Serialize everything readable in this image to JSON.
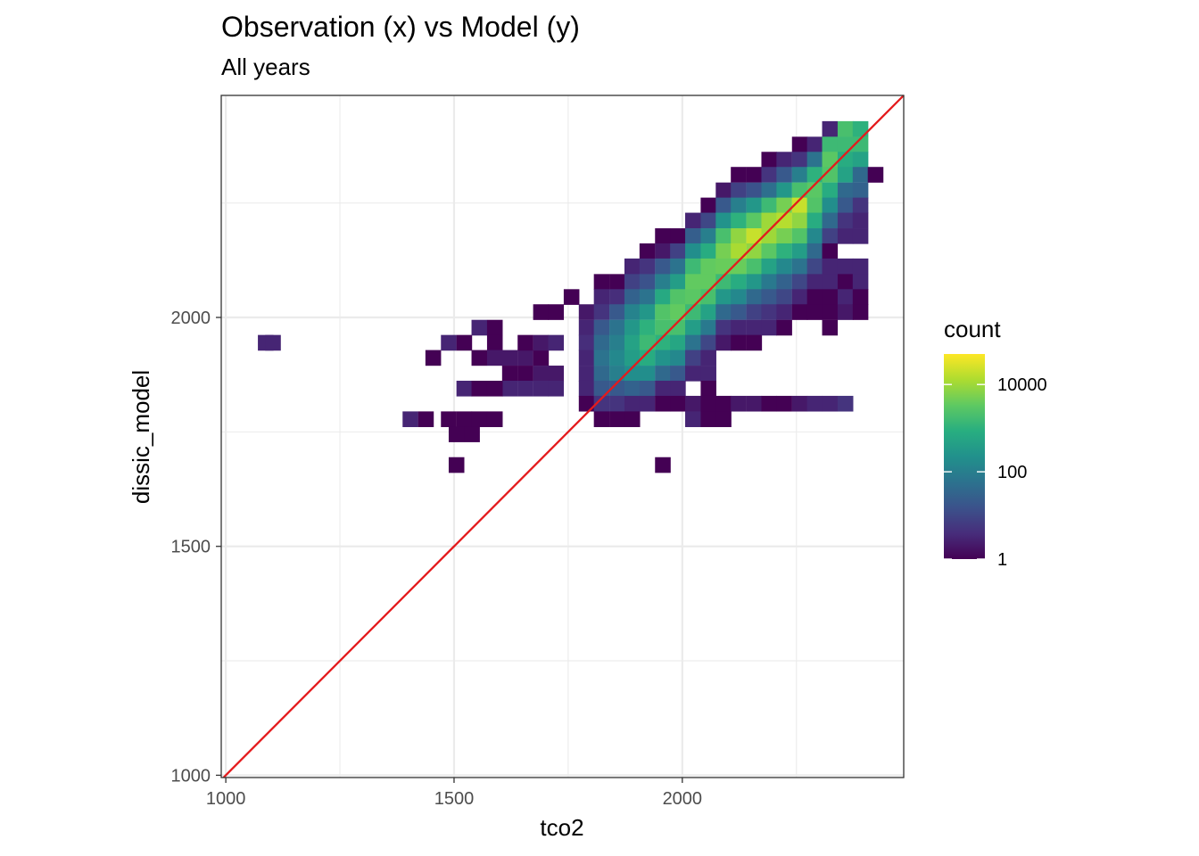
{
  "chart_data": {
    "type": "heatmap",
    "title": "Observation (x) vs Model (y)",
    "subtitle": "All years",
    "xlabel": "tco2",
    "ylabel": "dissic_model",
    "xlim": [
      990,
      2485
    ],
    "ylim": [
      995,
      2485
    ],
    "x_ticks": [
      1000,
      1500,
      2000
    ],
    "y_ticks": [
      1000,
      1500,
      2000
    ],
    "bin_width": 33.5,
    "grid": true,
    "reference_line": {
      "slope": 1,
      "intercept": 0,
      "color": "#e41a1c"
    },
    "legend": {
      "title": "count",
      "scale": "log10",
      "range": [
        1,
        50000
      ],
      "labels": [
        {
          "value": 1,
          "text": "1"
        },
        {
          "value": 100,
          "text": "100"
        },
        {
          "value": 10000,
          "text": "10000"
        }
      ],
      "position": "right"
    },
    "bins": [
      [
        1087,
        1945,
        3
      ],
      [
        1103,
        1945,
        3
      ],
      [
        1454,
        1912,
        1
      ],
      [
        1488,
        1945,
        3
      ],
      [
        1522,
        1945,
        1
      ],
      [
        1555,
        1978,
        3
      ],
      [
        1589,
        1978,
        1
      ],
      [
        1589,
        1945,
        1
      ],
      [
        1555,
        1912,
        1
      ],
      [
        1589,
        1912,
        2
      ],
      [
        1622,
        1912,
        2
      ],
      [
        1656,
        1912,
        2
      ],
      [
        1690,
        1912,
        1
      ],
      [
        1656,
        1945,
        1
      ],
      [
        1690,
        1945,
        2
      ],
      [
        1723,
        1945,
        3
      ],
      [
        1622,
        1878,
        1
      ],
      [
        1656,
        1878,
        1
      ],
      [
        1723,
        1878,
        2
      ],
      [
        1690,
        1878,
        2
      ],
      [
        1622,
        1845,
        3
      ],
      [
        1656,
        1845,
        3
      ],
      [
        1690,
        1845,
        3
      ],
      [
        1723,
        1845,
        3
      ],
      [
        1522,
        1845,
        3
      ],
      [
        1555,
        1845,
        1
      ],
      [
        1589,
        1845,
        1
      ],
      [
        1404,
        1778,
        3
      ],
      [
        1438,
        1778,
        1
      ],
      [
        1488,
        1778,
        1
      ],
      [
        1522,
        1778,
        1
      ],
      [
        1555,
        1778,
        1
      ],
      [
        1589,
        1778,
        1
      ],
      [
        1505,
        1745,
        1
      ],
      [
        1539,
        1745,
        1
      ],
      [
        1505,
        1678,
        1
      ],
      [
        1690,
        2012,
        1
      ],
      [
        1723,
        2012,
        1
      ],
      [
        1757,
        2045,
        1
      ],
      [
        1790,
        2012,
        2
      ],
      [
        1790,
        1978,
        3
      ],
      [
        1790,
        1945,
        4
      ],
      [
        1790,
        1912,
        3
      ],
      [
        1790,
        1878,
        3
      ],
      [
        1790,
        1845,
        3
      ],
      [
        1790,
        1812,
        1
      ],
      [
        1823,
        2078,
        1
      ],
      [
        1823,
        2045,
        3
      ],
      [
        1823,
        2012,
        5
      ],
      [
        1823,
        1978,
        20
      ],
      [
        1823,
        1945,
        40
      ],
      [
        1823,
        1912,
        60
      ],
      [
        1823,
        1878,
        40
      ],
      [
        1823,
        1845,
        20
      ],
      [
        1823,
        1812,
        5
      ],
      [
        1823,
        1778,
        1
      ],
      [
        1857,
        2078,
        1
      ],
      [
        1857,
        2045,
        4
      ],
      [
        1857,
        2012,
        20
      ],
      [
        1857,
        1978,
        60
      ],
      [
        1857,
        1945,
        100
      ],
      [
        1857,
        1912,
        150
      ],
      [
        1857,
        1878,
        100
      ],
      [
        1857,
        1845,
        20
      ],
      [
        1857,
        1812,
        5
      ],
      [
        1857,
        1778,
        1
      ],
      [
        1890,
        2112,
        3
      ],
      [
        1890,
        2078,
        8
      ],
      [
        1890,
        2045,
        30
      ],
      [
        1890,
        2012,
        120
      ],
      [
        1890,
        1978,
        300
      ],
      [
        1890,
        1945,
        500
      ],
      [
        1890,
        1912,
        400
      ],
      [
        1890,
        1878,
        200
      ],
      [
        1890,
        1845,
        30
      ],
      [
        1890,
        1812,
        3
      ],
      [
        1890,
        1778,
        1
      ],
      [
        1923,
        2145,
        1
      ],
      [
        1923,
        2112,
        5
      ],
      [
        1923,
        2078,
        15
      ],
      [
        1923,
        2045,
        60
      ],
      [
        1923,
        2012,
        300
      ],
      [
        1923,
        1978,
        1000
      ],
      [
        1923,
        1945,
        1500
      ],
      [
        1923,
        1912,
        800
      ],
      [
        1923,
        1878,
        200
      ],
      [
        1923,
        1845,
        20
      ],
      [
        1923,
        1812,
        3
      ],
      [
        1957,
        2178,
        1
      ],
      [
        1957,
        2145,
        2
      ],
      [
        1957,
        2112,
        20
      ],
      [
        1957,
        2078,
        100
      ],
      [
        1957,
        2045,
        700
      ],
      [
        1957,
        2012,
        2500
      ],
      [
        1957,
        1978,
        2000
      ],
      [
        1957,
        1945,
        1000
      ],
      [
        1957,
        1912,
        250
      ],
      [
        1957,
        1878,
        40
      ],
      [
        1957,
        1845,
        3
      ],
      [
        1957,
        1812,
        1
      ],
      [
        1957,
        1678,
        1
      ],
      [
        1990,
        2178,
        1
      ],
      [
        1990,
        2145,
        8
      ],
      [
        1990,
        2112,
        60
      ],
      [
        1990,
        2078,
        400
      ],
      [
        1990,
        2045,
        2500
      ],
      [
        1990,
        2012,
        3500
      ],
      [
        1990,
        1978,
        2000
      ],
      [
        1990,
        1945,
        600
      ],
      [
        1990,
        1912,
        150
      ],
      [
        1990,
        1878,
        20
      ],
      [
        1990,
        1845,
        3
      ],
      [
        1990,
        1812,
        1
      ],
      [
        2023,
        2212,
        3
      ],
      [
        2023,
        2178,
        25
      ],
      [
        2023,
        2145,
        200
      ],
      [
        2023,
        2112,
        1500
      ],
      [
        2023,
        2078,
        3500
      ],
      [
        2023,
        2045,
        3000
      ],
      [
        2023,
        2012,
        1500
      ],
      [
        2023,
        1978,
        400
      ],
      [
        2023,
        1945,
        60
      ],
      [
        2023,
        1912,
        8
      ],
      [
        2023,
        1878,
        3
      ],
      [
        2023,
        1812,
        2
      ],
      [
        2023,
        1778,
        3
      ],
      [
        2057,
        2245,
        1
      ],
      [
        2057,
        2212,
        10
      ],
      [
        2057,
        2178,
        100
      ],
      [
        2057,
        2145,
        800
      ],
      [
        2057,
        2112,
        3500
      ],
      [
        2057,
        2078,
        3500
      ],
      [
        2057,
        2045,
        2000
      ],
      [
        2057,
        2012,
        500
      ],
      [
        2057,
        1978,
        80
      ],
      [
        2057,
        1945,
        10
      ],
      [
        2057,
        1912,
        3
      ],
      [
        2057,
        1878,
        3
      ],
      [
        2057,
        1845,
        1
      ],
      [
        2057,
        1812,
        1
      ],
      [
        2057,
        1778,
        1
      ],
      [
        2090,
        2278,
        2
      ],
      [
        2090,
        2245,
        20
      ],
      [
        2090,
        2212,
        250
      ],
      [
        2090,
        2178,
        2000
      ],
      [
        2090,
        2145,
        5000
      ],
      [
        2090,
        2112,
        4000
      ],
      [
        2090,
        2078,
        1500
      ],
      [
        2090,
        2045,
        300
      ],
      [
        2090,
        2012,
        40
      ],
      [
        2090,
        1978,
        5
      ],
      [
        2090,
        1945,
        2
      ],
      [
        2090,
        1812,
        1
      ],
      [
        2090,
        1778,
        1
      ],
      [
        2123,
        2312,
        1
      ],
      [
        2123,
        2278,
        8
      ],
      [
        2123,
        2245,
        100
      ],
      [
        2123,
        2212,
        1000
      ],
      [
        2123,
        2178,
        8000
      ],
      [
        2123,
        2145,
        12000
      ],
      [
        2123,
        2112,
        4000
      ],
      [
        2123,
        2078,
        800
      ],
      [
        2123,
        2045,
        150
      ],
      [
        2123,
        2012,
        20
      ],
      [
        2123,
        1978,
        3
      ],
      [
        2123,
        1945,
        1
      ],
      [
        2123,
        1812,
        2
      ],
      [
        2157,
        2312,
        1
      ],
      [
        2157,
        2278,
        15
      ],
      [
        2157,
        2245,
        300
      ],
      [
        2157,
        2212,
        3000
      ],
      [
        2157,
        2178,
        20000
      ],
      [
        2157,
        2145,
        8000
      ],
      [
        2157,
        2112,
        2000
      ],
      [
        2157,
        2078,
        300
      ],
      [
        2157,
        2045,
        40
      ],
      [
        2157,
        2012,
        8
      ],
      [
        2157,
        1978,
        3
      ],
      [
        2157,
        1945,
        1
      ],
      [
        2157,
        1812,
        2
      ],
      [
        2190,
        2345,
        1
      ],
      [
        2190,
        2312,
        5
      ],
      [
        2190,
        2278,
        50
      ],
      [
        2190,
        2245,
        1500
      ],
      [
        2190,
        2212,
        10000
      ],
      [
        2190,
        2178,
        10000
      ],
      [
        2190,
        2145,
        3000
      ],
      [
        2190,
        2112,
        500
      ],
      [
        2190,
        2078,
        80
      ],
      [
        2190,
        2045,
        20
      ],
      [
        2190,
        2012,
        5
      ],
      [
        2190,
        1978,
        3
      ],
      [
        2190,
        1812,
        1
      ],
      [
        2223,
        2345,
        3
      ],
      [
        2223,
        2312,
        20
      ],
      [
        2223,
        2278,
        300
      ],
      [
        2223,
        2245,
        5000
      ],
      [
        2223,
        2212,
        15000
      ],
      [
        2223,
        2178,
        5000
      ],
      [
        2223,
        2145,
        1000
      ],
      [
        2223,
        2112,
        150
      ],
      [
        2223,
        2078,
        30
      ],
      [
        2223,
        2045,
        10
      ],
      [
        2223,
        2012,
        3
      ],
      [
        2223,
        1978,
        1
      ],
      [
        2223,
        1812,
        1
      ],
      [
        2257,
        2378,
        1
      ],
      [
        2257,
        2345,
        5
      ],
      [
        2257,
        2312,
        100
      ],
      [
        2257,
        2278,
        2000
      ],
      [
        2257,
        2245,
        20000
      ],
      [
        2257,
        2212,
        8000
      ],
      [
        2257,
        2178,
        2500
      ],
      [
        2257,
        2145,
        400
      ],
      [
        2257,
        2112,
        60
      ],
      [
        2257,
        2078,
        10
      ],
      [
        2257,
        2045,
        3
      ],
      [
        2257,
        2012,
        1
      ],
      [
        2257,
        1812,
        2
      ],
      [
        2290,
        2378,
        3
      ],
      [
        2290,
        2345,
        60
      ],
      [
        2290,
        2312,
        1000
      ],
      [
        2290,
        2278,
        3000
      ],
      [
        2290,
        2245,
        2500
      ],
      [
        2290,
        2212,
        800
      ],
      [
        2290,
        2178,
        150
      ],
      [
        2290,
        2145,
        40
      ],
      [
        2290,
        2112,
        10
      ],
      [
        2290,
        2078,
        3
      ],
      [
        2290,
        2045,
        1
      ],
      [
        2290,
        2012,
        1
      ],
      [
        2290,
        1812,
        3
      ],
      [
        2323,
        2412,
        3
      ],
      [
        2323,
        2378,
        1500
      ],
      [
        2323,
        2345,
        3000
      ],
      [
        2323,
        2312,
        2500
      ],
      [
        2323,
        2278,
        800
      ],
      [
        2323,
        2245,
        200
      ],
      [
        2323,
        2212,
        40
      ],
      [
        2323,
        2178,
        8
      ],
      [
        2323,
        2145,
        1
      ],
      [
        2323,
        2112,
        3
      ],
      [
        2323,
        2078,
        3
      ],
      [
        2323,
        2045,
        1
      ],
      [
        2323,
        2012,
        1
      ],
      [
        2323,
        1978,
        1
      ],
      [
        2323,
        1812,
        3
      ],
      [
        2357,
        2412,
        2000
      ],
      [
        2357,
        2378,
        1500
      ],
      [
        2357,
        2345,
        800
      ],
      [
        2357,
        2312,
        500
      ],
      [
        2357,
        2278,
        40
      ],
      [
        2357,
        2245,
        20
      ],
      [
        2357,
        2212,
        5
      ],
      [
        2357,
        2178,
        3
      ],
      [
        2357,
        2112,
        3
      ],
      [
        2357,
        2078,
        1
      ],
      [
        2357,
        2045,
        3
      ],
      [
        2357,
        2012,
        2
      ],
      [
        2357,
        1812,
        5
      ],
      [
        2390,
        2412,
        1000
      ],
      [
        2390,
        2378,
        1500
      ],
      [
        2390,
        2345,
        500
      ],
      [
        2390,
        2312,
        40
      ],
      [
        2390,
        2278,
        30
      ],
      [
        2390,
        2245,
        5
      ],
      [
        2390,
        2212,
        3
      ],
      [
        2390,
        2178,
        3
      ],
      [
        2390,
        2112,
        3
      ],
      [
        2390,
        2078,
        3
      ],
      [
        2390,
        2045,
        1
      ],
      [
        2390,
        2012,
        1
      ],
      [
        2423,
        2312,
        1
      ]
    ]
  }
}
